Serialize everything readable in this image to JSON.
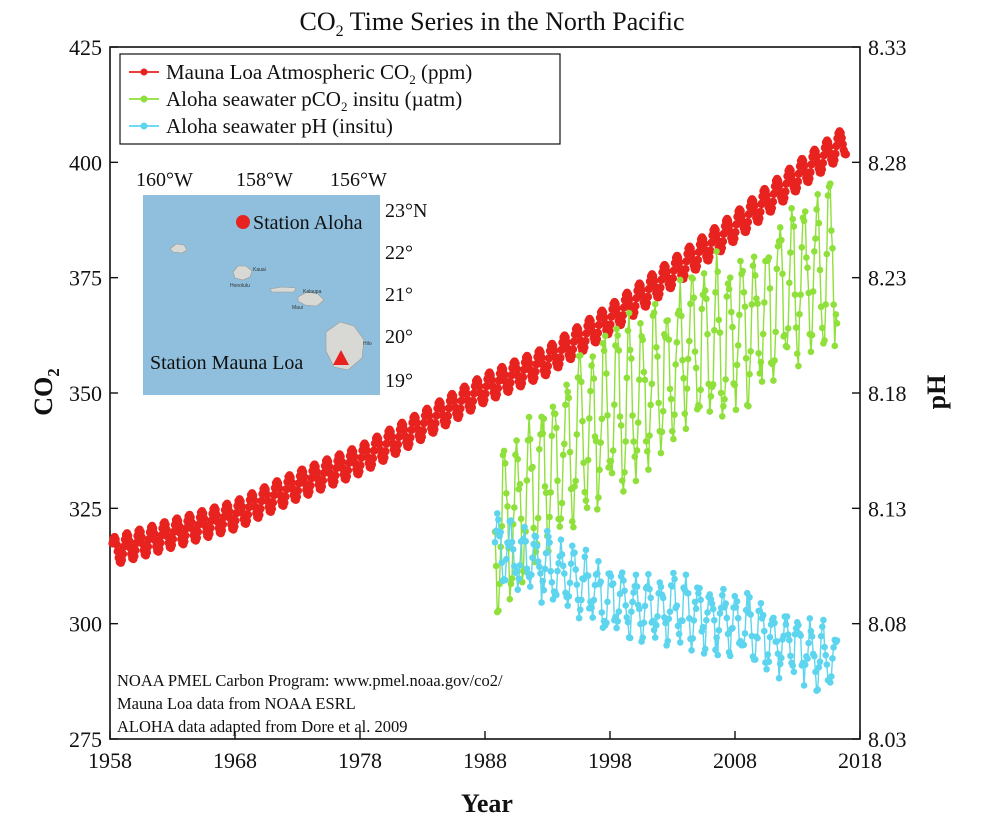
{
  "chart_data": {
    "type": "line",
    "title": "CO₂ Time Series in the North Pacific",
    "title_main": "CO",
    "title_sub": "2",
    "title_rest": " Time Series in the North Pacific",
    "xlabel": "Year",
    "ylabel_left": "CO₂",
    "ylabel_left_main": "CO",
    "ylabel_left_sub": "2",
    "ylabel_right": "pH",
    "xlim": [
      1958,
      2018
    ],
    "ylim_left": [
      275,
      425
    ],
    "ylim_right": [
      8.03,
      8.33
    ],
    "x_ticks": [
      "1958",
      "1968",
      "1978",
      "1988",
      "1998",
      "2008",
      "2018"
    ],
    "y_left_ticks": [
      "275",
      "300",
      "325",
      "350",
      "375",
      "400",
      "425"
    ],
    "y_right_ticks": [
      "8.03",
      "8.08",
      "8.13",
      "8.18",
      "8.23",
      "8.28",
      "8.33"
    ],
    "grid": false,
    "legend_position": "top-left",
    "series": [
      {
        "name": "Mauna Loa Atmospheric CO₂ (ppm)",
        "label_main": "Mauna Loa Atmospheric CO",
        "label_sub": "2",
        "label_rest": " (ppm)",
        "axis": "left",
        "color": "#e8231f",
        "trend_x": [
          1958,
          1963,
          1968,
          1973,
          1978,
          1983,
          1988,
          1993,
          1998,
          2003,
          2008,
          2013,
          2017
        ],
        "trend_y": [
          315.5,
          319.5,
          323.5,
          330,
          335.5,
          343,
          351,
          357,
          366,
          376,
          386,
          397,
          405
        ],
        "seasonal_amplitude_ppm": 3
      },
      {
        "name": "Aloha seawater pCO₂ insitu (µatm)",
        "label_main": "Aloha seawater pCO",
        "label_sub": "2",
        "label_rest": " insitu (µatm)",
        "axis": "left",
        "color": "#8fe03a",
        "x_range": [
          1988.8,
          2016.2
        ],
        "trend_x": [
          1989,
          1993,
          1998,
          2003,
          2008,
          2013,
          2016
        ],
        "trend_y": [
          320,
          333,
          346,
          356,
          363,
          374,
          378
        ],
        "seasonal_amplitude": 15
      },
      {
        "name": "Aloha seawater pH (insitu)",
        "label_main": "Aloha seawater pH (insitu)",
        "label_sub": "",
        "label_rest": "",
        "axis": "right",
        "color": "#5dd5ee",
        "x_range": [
          1988.8,
          2016.2
        ],
        "trend_x": [
          1989,
          1993,
          1998,
          2003,
          2008,
          2013,
          2016
        ],
        "trend_y": [
          8.113,
          8.105,
          8.09,
          8.087,
          8.08,
          8.07,
          8.063
        ],
        "seasonal_amplitude": 0.012
      }
    ],
    "inset_map": {
      "lon_labels": [
        "160°W",
        "158°W",
        "156°W"
      ],
      "lat_labels": [
        "23°N",
        "22°",
        "21°",
        "20°",
        "19°"
      ],
      "station_aloha_label": "Station Aloha",
      "station_mauna_loa_label": "Station Mauna Loa",
      "island_labels": [
        "Kauai",
        "Honolulu",
        "Kalaupa",
        "Maui",
        "Hilo"
      ],
      "ocean_color": "#8fbfdc",
      "marker_color": "#e8231f"
    },
    "credits": [
      "NOAA PMEL Carbon Program: www.pmel.noaa.gov/co2/",
      "Mauna Loa data from NOAA ESRL",
      "ALOHA data adapted from Dore et al. 2009"
    ]
  }
}
